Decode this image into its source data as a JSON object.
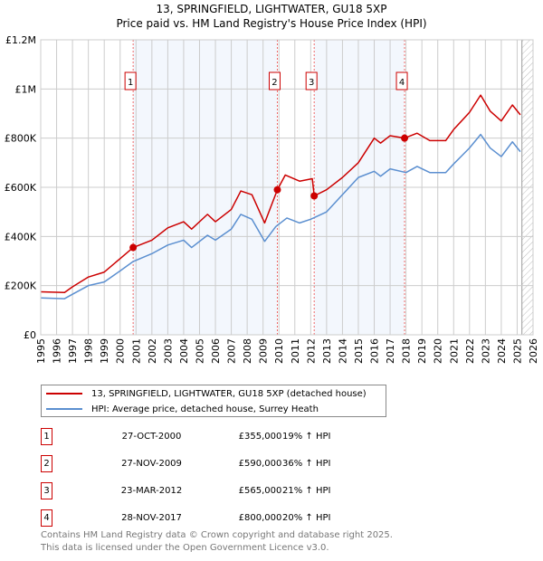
{
  "chart_data": {
    "type": "line",
    "title": "13, SPRINGFIELD, LIGHTWATER, GU18 5XP",
    "subtitle": "Price paid vs. HM Land Registry's House Price Index (HPI)",
    "xlim": [
      1995,
      2026
    ],
    "ylim": [
      0,
      1200000
    ],
    "x_ticks": [
      "1995",
      "1996",
      "1997",
      "1998",
      "1999",
      "2000",
      "2001",
      "2002",
      "2003",
      "2004",
      "2005",
      "2006",
      "2007",
      "2008",
      "2009",
      "2010",
      "2011",
      "2012",
      "2013",
      "2014",
      "2015",
      "2016",
      "2017",
      "2018",
      "2019",
      "2020",
      "2021",
      "2022",
      "2023",
      "2024",
      "2025",
      "2026"
    ],
    "y_ticks": [
      {
        "v": 0,
        "label": "£0"
      },
      {
        "v": 200000,
        "label": "£200K"
      },
      {
        "v": 400000,
        "label": "£400K"
      },
      {
        "v": 600000,
        "label": "£600K"
      },
      {
        "v": 800000,
        "label": "£800K"
      },
      {
        "v": 1000000,
        "label": "£1M"
      },
      {
        "v": 1200000,
        "label": "£1.2M"
      }
    ],
    "grid": true,
    "series": [
      {
        "name": "13, SPRINGFIELD, LIGHTWATER, GU18 5XP (detached house)",
        "color": "#cc0000",
        "x": [
          1995,
          1996.5,
          1997,
          1998,
          1999,
          2000,
          2000.82,
          2002,
          2003,
          2004,
          2004.5,
          2005.5,
          2006,
          2007,
          2007.6,
          2008.3,
          2009.1,
          2009.9,
          2010.4,
          2011.3,
          2012.1,
          2012.22,
          2013,
          2014,
          2015,
          2016,
          2016.4,
          2017,
          2017.9,
          2018.7,
          2019.5,
          2020.5,
          2021,
          2022,
          2022.7,
          2023.3,
          2024,
          2024.7,
          2025.2
        ],
        "y": [
          175000,
          172000,
          195000,
          235000,
          255000,
          310000,
          355000,
          385000,
          435000,
          460000,
          430000,
          490000,
          460000,
          510000,
          585000,
          570000,
          455000,
          590000,
          650000,
          625000,
          635000,
          565000,
          590000,
          640000,
          700000,
          800000,
          780000,
          810000,
          800000,
          820000,
          790000,
          790000,
          835000,
          905000,
          975000,
          910000,
          870000,
          935000,
          895000
        ]
      },
      {
        "name": "HPI: Average price, detached house, Surrey Heath",
        "color": "#5b8fd0",
        "x": [
          1995,
          1996.5,
          1997,
          1998,
          1999,
          2000,
          2000.82,
          2002,
          2003,
          2004,
          2004.5,
          2005.5,
          2006,
          2007,
          2007.6,
          2008.3,
          2009.1,
          2009.8,
          2010.5,
          2011.3,
          2012,
          2013,
          2014,
          2015,
          2016,
          2016.4,
          2017,
          2018,
          2018.7,
          2019.5,
          2020.5,
          2021,
          2022,
          2022.7,
          2023.3,
          2024,
          2024.7,
          2025.2
        ],
        "y": [
          150000,
          147000,
          165000,
          200000,
          215000,
          260000,
          298000,
          330000,
          365000,
          385000,
          355000,
          405000,
          385000,
          430000,
          490000,
          470000,
          380000,
          440000,
          475000,
          455000,
          470000,
          500000,
          570000,
          640000,
          665000,
          645000,
          675000,
          660000,
          685000,
          660000,
          660000,
          695000,
          760000,
          815000,
          760000,
          725000,
          785000,
          745000
        ]
      }
    ],
    "sales": [
      {
        "n": "1",
        "x": 2000.82,
        "y": 355000,
        "date": "27-OCT-2000",
        "price": "£355,000",
        "hpi": "19% ↑ HPI"
      },
      {
        "n": "2",
        "x": 2009.9,
        "y": 590000,
        "date": "27-NOV-2009",
        "price": "£590,000",
        "hpi": "36% ↑ HPI"
      },
      {
        "n": "3",
        "x": 2012.22,
        "y": 565000,
        "date": "23-MAR-2012",
        "price": "£565,000",
        "hpi": "21% ↑ HPI"
      },
      {
        "n": "4",
        "x": 2017.91,
        "y": 800000,
        "date": "28-NOV-2017",
        "price": "£800,000",
        "hpi": "20% ↑ HPI"
      }
    ],
    "forecast_from": 2025.3,
    "legend": "below"
  },
  "footer": {
    "line1": "Contains HM Land Registry data © Crown copyright and database right 2025.",
    "line2": "This data is licensed under the Open Government Licence v3.0."
  }
}
